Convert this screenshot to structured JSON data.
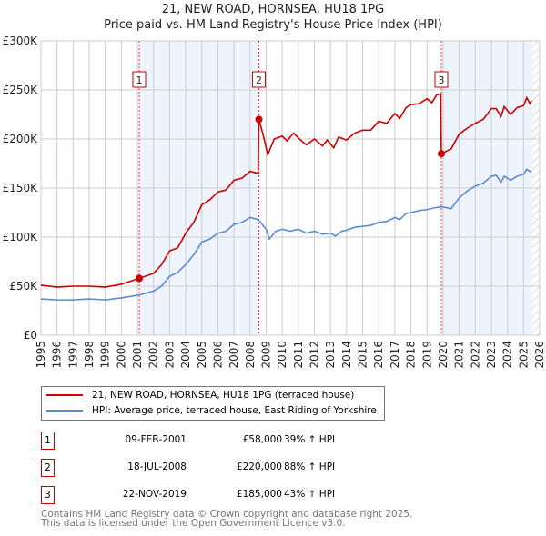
{
  "title": "21, NEW ROAD, HORNSEA, HU18 1PG",
  "subtitle": "Price paid vs. HM Land Registry's House Price Index (HPI)",
  "colors": {
    "property": "#cc0000",
    "hpi": "#5b8bd0",
    "shade": "#eef3fc"
  },
  "chart_data": {
    "type": "line",
    "xlim": [
      1995,
      2026
    ],
    "ylim": [
      0,
      300000
    ],
    "x_ticks": [
      "1995",
      "1996",
      "1997",
      "1998",
      "1999",
      "2000",
      "2001",
      "2002",
      "2003",
      "2004",
      "2005",
      "2006",
      "2007",
      "2008",
      "2009",
      "2010",
      "2011",
      "2012",
      "2013",
      "2014",
      "2015",
      "2016",
      "2017",
      "2018",
      "2019",
      "2020",
      "2021",
      "2022",
      "2023",
      "2024",
      "2025",
      "2026"
    ],
    "y_ticks": [
      {
        "v": 0,
        "label": "£0"
      },
      {
        "v": 50000,
        "label": "£50K"
      },
      {
        "v": 100000,
        "label": "£100K"
      },
      {
        "v": 150000,
        "label": "£150K"
      },
      {
        "v": 200000,
        "label": "£200K"
      },
      {
        "v": 250000,
        "label": "£250K"
      },
      {
        "v": 300000,
        "label": "£300K"
      }
    ],
    "grid": true,
    "shaded_ranges": [
      [
        2001.11,
        2008.55
      ],
      [
        2019.89,
        2025.55
      ]
    ],
    "hatched_from": 2025.55,
    "series": [
      {
        "name": "21, NEW ROAD, HORNSEA, HU18 1PG (terraced house)",
        "color": "#cc0000",
        "points": [
          [
            1995,
            51000
          ],
          [
            1996,
            49000
          ],
          [
            1997,
            50000
          ],
          [
            1998,
            50000
          ],
          [
            1999,
            49000
          ],
          [
            2000,
            52000
          ],
          [
            2001.11,
            58000
          ],
          [
            2002,
            63000
          ],
          [
            2002.5,
            72000
          ],
          [
            2003,
            86000
          ],
          [
            2003.5,
            89000
          ],
          [
            2004,
            104000
          ],
          [
            2004.5,
            115000
          ],
          [
            2005,
            133000
          ],
          [
            2005.5,
            138000
          ],
          [
            2006,
            146000
          ],
          [
            2006.5,
            148000
          ],
          [
            2007,
            158000
          ],
          [
            2007.5,
            160000
          ],
          [
            2008,
            167000
          ],
          [
            2008.5,
            165000
          ],
          [
            2008.55,
            220000
          ],
          [
            2008.8,
            205000
          ],
          [
            2009.1,
            184000
          ],
          [
            2009.5,
            200000
          ],
          [
            2010,
            203000
          ],
          [
            2010.3,
            198000
          ],
          [
            2010.7,
            206000
          ],
          [
            2011.2,
            198000
          ],
          [
            2011.5,
            194000
          ],
          [
            2012,
            200000
          ],
          [
            2012.5,
            193000
          ],
          [
            2012.8,
            199000
          ],
          [
            2013.2,
            191000
          ],
          [
            2013.5,
            202000
          ],
          [
            2014,
            199000
          ],
          [
            2014.5,
            206000
          ],
          [
            2015,
            209000
          ],
          [
            2015.5,
            209000
          ],
          [
            2016,
            218000
          ],
          [
            2016.5,
            216000
          ],
          [
            2017,
            226000
          ],
          [
            2017.3,
            221000
          ],
          [
            2017.7,
            232000
          ],
          [
            2018,
            235000
          ],
          [
            2018.5,
            236000
          ],
          [
            2019,
            241000
          ],
          [
            2019.3,
            237000
          ],
          [
            2019.6,
            245000
          ],
          [
            2019.85,
            246000
          ],
          [
            2019.89,
            185000
          ],
          [
            2020.5,
            190000
          ],
          [
            2021,
            205000
          ],
          [
            2021.5,
            211000
          ],
          [
            2022,
            216000
          ],
          [
            2022.5,
            220000
          ],
          [
            2023,
            231000
          ],
          [
            2023.3,
            231000
          ],
          [
            2023.6,
            223000
          ],
          [
            2023.8,
            233000
          ],
          [
            2024.2,
            225000
          ],
          [
            2024.6,
            232000
          ],
          [
            2025,
            234000
          ],
          [
            2025.2,
            242000
          ],
          [
            2025.4,
            236000
          ],
          [
            2025.5,
            239000
          ]
        ]
      },
      {
        "name": "HPI: Average price, terraced house, East Riding of Yorkshire",
        "color": "#5b8bd0",
        "points": [
          [
            1995,
            37000
          ],
          [
            1996,
            36000
          ],
          [
            1997,
            36000
          ],
          [
            1998,
            37000
          ],
          [
            1999,
            36000
          ],
          [
            2000,
            38000
          ],
          [
            2001.1,
            41000
          ],
          [
            2002,
            45000
          ],
          [
            2002.5,
            50000
          ],
          [
            2003,
            60000
          ],
          [
            2003.5,
            64000
          ],
          [
            2004,
            72000
          ],
          [
            2004.5,
            82000
          ],
          [
            2005,
            95000
          ],
          [
            2005.5,
            98000
          ],
          [
            2006,
            104000
          ],
          [
            2006.5,
            106000
          ],
          [
            2007,
            113000
          ],
          [
            2007.5,
            115000
          ],
          [
            2008,
            120000
          ],
          [
            2008.5,
            118000
          ],
          [
            2009,
            108000
          ],
          [
            2009.2,
            98000
          ],
          [
            2009.6,
            106000
          ],
          [
            2010,
            108000
          ],
          [
            2010.5,
            106000
          ],
          [
            2011,
            108000
          ],
          [
            2011.5,
            104000
          ],
          [
            2012,
            106000
          ],
          [
            2012.5,
            103000
          ],
          [
            2013,
            104000
          ],
          [
            2013.3,
            101000
          ],
          [
            2013.7,
            106000
          ],
          [
            2014,
            107000
          ],
          [
            2014.5,
            110000
          ],
          [
            2015,
            111000
          ],
          [
            2015.5,
            112000
          ],
          [
            2016,
            115000
          ],
          [
            2016.5,
            116000
          ],
          [
            2017,
            120000
          ],
          [
            2017.3,
            118000
          ],
          [
            2017.7,
            124000
          ],
          [
            2018,
            125000
          ],
          [
            2018.5,
            127000
          ],
          [
            2019,
            128000
          ],
          [
            2019.5,
            130000
          ],
          [
            2019.9,
            131000
          ],
          [
            2020.5,
            129000
          ],
          [
            2021,
            140000
          ],
          [
            2021.5,
            147000
          ],
          [
            2022,
            152000
          ],
          [
            2022.5,
            155000
          ],
          [
            2023,
            162000
          ],
          [
            2023.3,
            163000
          ],
          [
            2023.6,
            156000
          ],
          [
            2023.8,
            162000
          ],
          [
            2024.2,
            158000
          ],
          [
            2024.6,
            162000
          ],
          [
            2025,
            164000
          ],
          [
            2025.2,
            169000
          ],
          [
            2025.5,
            166000
          ]
        ]
      }
    ],
    "sales": [
      {
        "label": "1",
        "x": 2001.11,
        "value": 58000
      },
      {
        "label": "2",
        "x": 2008.55,
        "value": 220000
      },
      {
        "label": "3",
        "x": 2019.89,
        "value": 185000
      }
    ]
  },
  "legend": {
    "property": "21, NEW ROAD, HORNSEA, HU18 1PG (terraced house)",
    "hpi": "HPI: Average price, terraced house, East Riding of Yorkshire"
  },
  "transactions": [
    {
      "num": "1",
      "date": "09-FEB-2001",
      "price": "£58,000",
      "hpi": "39% ↑ HPI"
    },
    {
      "num": "2",
      "date": "18-JUL-2008",
      "price": "£220,000",
      "hpi": "88% ↑ HPI"
    },
    {
      "num": "3",
      "date": "22-NOV-2019",
      "price": "£185,000",
      "hpi": "43% ↑ HPI"
    }
  ],
  "footer": {
    "line1": "Contains HM Land Registry data © Crown copyright and database right 2025.",
    "line2": "This data is licensed under the Open Government Licence v3.0."
  }
}
